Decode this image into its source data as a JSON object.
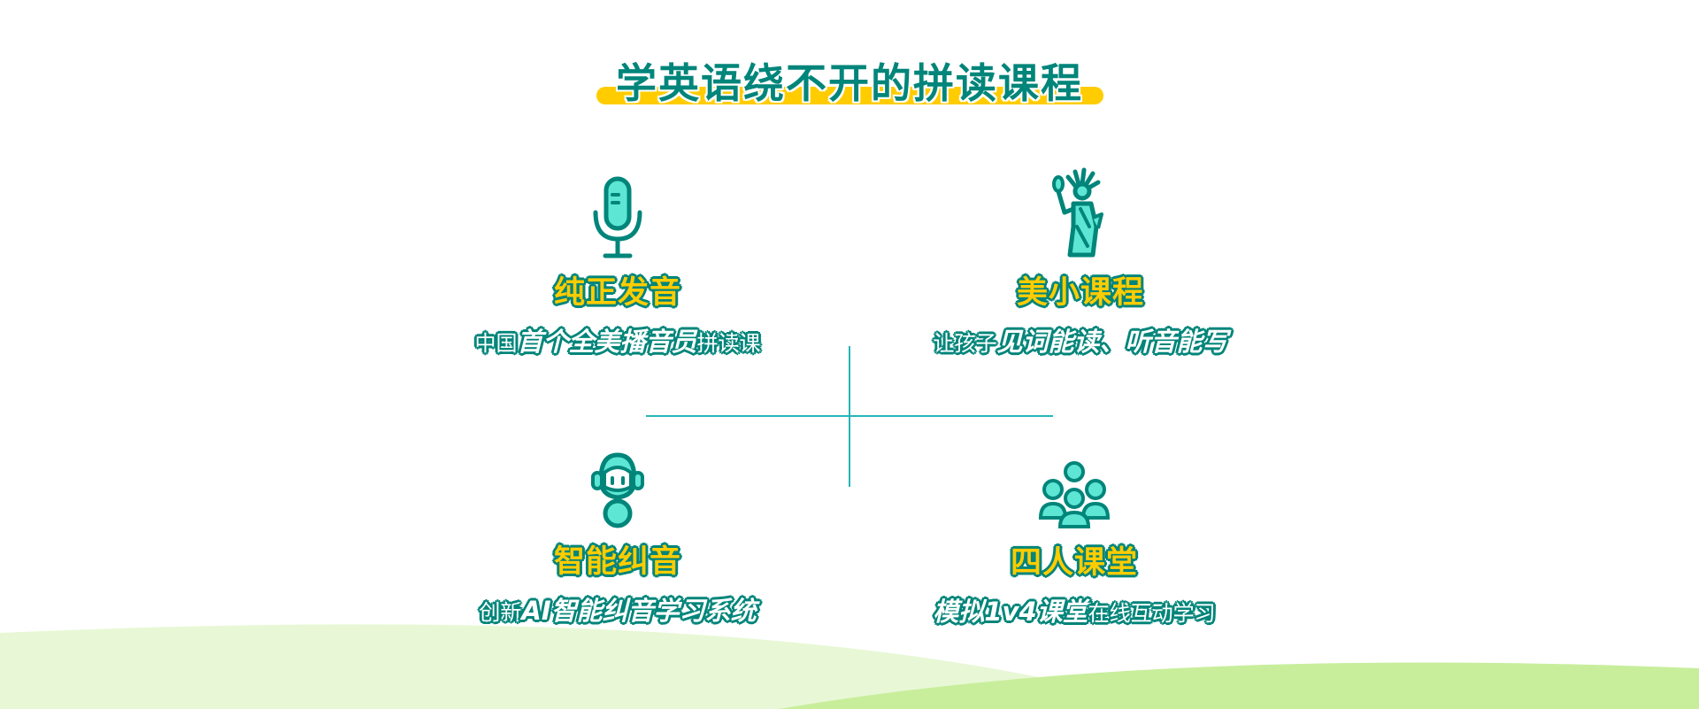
{
  "title": "学英语绕不开的拼读课程",
  "colors": {
    "teal": "#00857a",
    "light_teal": "#5ee6d4",
    "yellow": "#ffcc00",
    "hill_light": "#e8f8d6",
    "hill_green": "#c8ee9c"
  },
  "features": [
    {
      "icon": "microphone-icon",
      "title": "纯正发音",
      "desc_pre": "中国",
      "desc_em": "首个全美播音员",
      "desc_post": "拼读课"
    },
    {
      "icon": "statue-of-liberty-icon",
      "title": "美小课程",
      "desc_pre": "让孩子",
      "desc_em": "见词能读、听音能写",
      "desc_post": ""
    },
    {
      "icon": "robot-headset-icon",
      "title": "智能纠音",
      "desc_pre": "创新",
      "desc_em": "AI智能纠音学习系统",
      "desc_post": ""
    },
    {
      "icon": "group-icon",
      "title": "四人课堂",
      "desc_pre": "",
      "desc_em": "模拟1v4课堂",
      "desc_post": "在线互动学习"
    }
  ]
}
